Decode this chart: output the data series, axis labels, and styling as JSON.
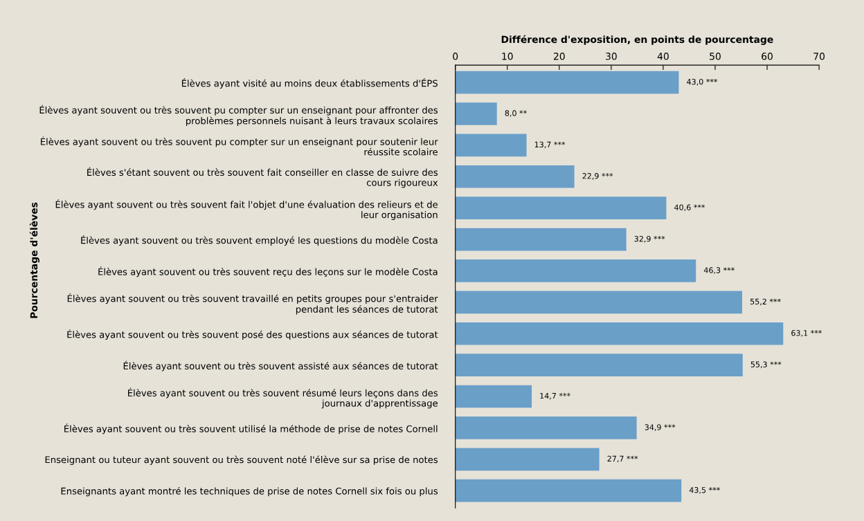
{
  "chart_data": {
    "type": "bar",
    "orientation": "horizontal",
    "xlabel": "Différence d'exposition, en points de pourcentage",
    "ylabel": "Pourcentage d'élèves",
    "categories": [
      "Élèves ayant visité au moins deux établissements d'ÉPS",
      "Élèves ayant souvent ou très souvent pu compter sur un enseignant pour affronter des\nproblèmes personnels nuisant à leurs travaux scolaires",
      "Élèves ayant souvent ou très souvent pu compter sur un enseignant pour soutenir leur\nréussite scolaire",
      "Élèves s'étant souvent ou très souvent fait conseiller en classe de suivre des\ncours rigoureux",
      "Élèves ayant souvent ou très souvent fait l'objet d'une évaluation des relieurs et de\nleur organisation",
      "Élèves ayant souvent ou très souvent employé les questions du modèle Costa",
      "Élèves ayant souvent ou très souvent reçu des leçons sur le modèle Costa",
      "Élèves ayant souvent ou très souvent travaillé en petits groupes pour s'entraider\npendant les séances de tutorat",
      "Élèves ayant souvent ou très souvent posé des questions aux séances de tutorat",
      "Élèves ayant souvent ou très souvent assisté aux séances de tutorat",
      "Élèves ayant souvent ou très souvent résumé leurs leçons dans des\njournaux d'apprentissage",
      "Élèves ayant souvent ou très souvent utilisé la méthode de prise de notes Cornell",
      "Enseignant ou tuteur ayant souvent ou très souvent noté l'élève sur sa prise de notes",
      "Enseignants ayant montré les techniques de prise de notes Cornell six fois ou plus"
    ],
    "values": [
      43.0,
      8.0,
      13.7,
      22.9,
      40.6,
      32.9,
      46.3,
      55.2,
      63.1,
      55.3,
      14.7,
      34.9,
      27.7,
      43.5
    ],
    "value_labels": [
      "43,0 ***",
      "8,0 **",
      "13,7 ***",
      "22,9 ***",
      "40,6 ***",
      "32,9 ***",
      "46,3 ***",
      "55,2 ***",
      "63,1 ***",
      "55,3 ***",
      "14,7 ***",
      "34,9 ***",
      "27,7 ***",
      "43,5 ***"
    ],
    "color": "#6a9fc8",
    "xlim": [
      0,
      70
    ],
    "xticks": [
      0,
      10,
      20,
      30,
      40,
      50,
      60,
      70
    ],
    "grid": false,
    "legend": false
  }
}
